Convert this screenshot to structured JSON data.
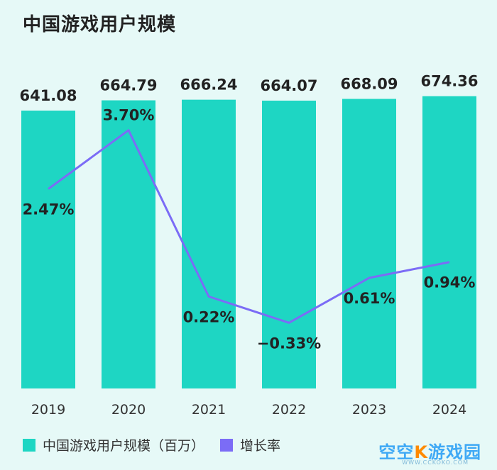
{
  "chart_data": {
    "type": "bar+line",
    "title": "中国游戏用户规模",
    "categories": [
      "2019",
      "2020",
      "2021",
      "2022",
      "2023",
      "2024"
    ],
    "series": [
      {
        "name": "中国游戏用户规模（百万）",
        "kind": "bar",
        "color": "#1ed6c3",
        "values": [
          641.08,
          664.79,
          666.24,
          664.07,
          668.09,
          674.36
        ],
        "labels": [
          "641.08",
          "664.79",
          "666.24",
          "664.07",
          "668.09",
          "674.36"
        ]
      },
      {
        "name": "增长率",
        "kind": "line",
        "color": "#7b6cf6",
        "values": [
          2.47,
          3.7,
          0.22,
          -0.33,
          0.61,
          0.94
        ],
        "labels": [
          "2.47%",
          "3.70%",
          "0.22%",
          "−0.33%",
          "0.61%",
          "0.94%"
        ]
      }
    ],
    "bar_ylim": [
      0,
      700
    ],
    "line_ylim": [
      -0.8,
      4.2
    ]
  },
  "legend": {
    "bar_label": "中国游戏用户规模（百万）",
    "line_label": "增长率"
  },
  "watermark": {
    "part1": "空空",
    "k": "K",
    "part2": "游戏园",
    "sub": "WWW.CCKOKO.COM"
  }
}
